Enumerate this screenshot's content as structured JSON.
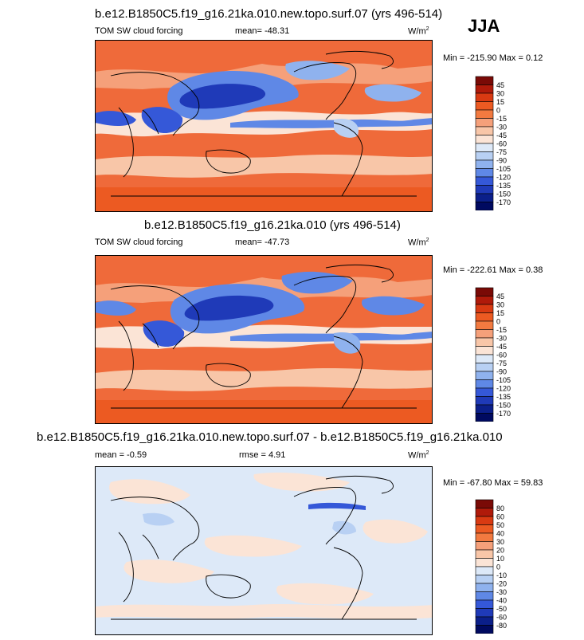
{
  "season": "JJA",
  "panels": [
    {
      "title": "b.e12.B1850C5.f19_g16.21ka.010.new.topo.surf.07 (yrs 496-514)",
      "left_label": "TOM SW cloud forcing",
      "mean_label": "mean= -48.31",
      "units": "W/m",
      "units_sup": "2",
      "minmax": "Min = -215.90 Max =   0.12",
      "levels": [
        "45",
        "30",
        "15",
        "0",
        "-15",
        "-30",
        "-45",
        "-60",
        "-75",
        "-90",
        "-105",
        "-120",
        "-135",
        "-150",
        "-170"
      ]
    },
    {
      "title": "b.e12.B1850C5.f19_g16.21ka.010 (yrs 496-514)",
      "left_label": "TOM SW cloud forcing",
      "mean_label": "mean= -47.73",
      "units": "W/m",
      "units_sup": "2",
      "minmax": "Min = -222.61 Max =   0.38",
      "levels": [
        "45",
        "30",
        "15",
        "0",
        "-15",
        "-30",
        "-45",
        "-60",
        "-75",
        "-90",
        "-105",
        "-120",
        "-135",
        "-150",
        "-170"
      ]
    },
    {
      "title": "b.e12.B1850C5.f19_g16.21ka.010.new.topo.surf.07 - b.e12.B1850C5.f19_g16.21ka.010",
      "left_label": "mean =  -0.59",
      "mean_label": "rmse =   4.91",
      "units": "W/m",
      "units_sup": "2",
      "minmax": "Min = -67.80 Max =  59.83",
      "levels": [
        "80",
        "60",
        "50",
        "40",
        "30",
        "20",
        "10",
        "0",
        "-10",
        "-20",
        "-30",
        "-40",
        "-50",
        "-60",
        "-80"
      ]
    }
  ],
  "chart_data": [
    {
      "type": "heatmap",
      "title": "b.e12.B1850C5.f19_g16.21ka.010.new.topo.surf.07 (yrs 496-514)",
      "variable": "TOM SW cloud forcing",
      "units": "W/m2",
      "season": "JJA",
      "mean": -48.31,
      "min": -215.9,
      "max": 0.12,
      "colorbar_levels": [
        45,
        30,
        15,
        0,
        -15,
        -30,
        -45,
        -60,
        -75,
        -90,
        -105,
        -120,
        -135,
        -150,
        -170
      ]
    },
    {
      "type": "heatmap",
      "title": "b.e12.B1850C5.f19_g16.21ka.010 (yrs 496-514)",
      "variable": "TOM SW cloud forcing",
      "units": "W/m2",
      "season": "JJA",
      "mean": -47.73,
      "min": -222.61,
      "max": 0.38,
      "colorbar_levels": [
        45,
        30,
        15,
        0,
        -15,
        -30,
        -45,
        -60,
        -75,
        -90,
        -105,
        -120,
        -135,
        -150,
        -170
      ]
    },
    {
      "type": "heatmap",
      "title": "b.e12.B1850C5.f19_g16.21ka.010.new.topo.surf.07 - b.e12.B1850C5.f19_g16.21ka.010",
      "units": "W/m2",
      "season": "JJA",
      "mean": -0.59,
      "rmse": 4.91,
      "min": -67.8,
      "max": 59.83,
      "colorbar_levels": [
        80,
        60,
        50,
        40,
        30,
        20,
        10,
        0,
        -10,
        -20,
        -30,
        -40,
        -50,
        -60,
        -80
      ]
    }
  ],
  "colors": {
    "cbar": [
      "#7a0a06",
      "#b01a0a",
      "#d93a12",
      "#ec5a22",
      "#f27a40",
      "#f5a07a",
      "#f8c6a8",
      "#fbe4d6",
      "#dde9f8",
      "#b8d0f3",
      "#8fb2ee",
      "#5f88e6",
      "#3558d8",
      "#1f3ab8",
      "#0b1f8a",
      "#000a60"
    ],
    "diff_cbar": [
      "#7a0a06",
      "#b01a0a",
      "#d93a12",
      "#ec5a22",
      "#f27a40",
      "#f5a07a",
      "#f8c6a8",
      "#fbe4d6",
      "#dde9f8",
      "#b8d0f3",
      "#8fb2ee",
      "#5f88e6",
      "#3558d8",
      "#1f3ab8",
      "#0b1f8a",
      "#000a60"
    ]
  }
}
